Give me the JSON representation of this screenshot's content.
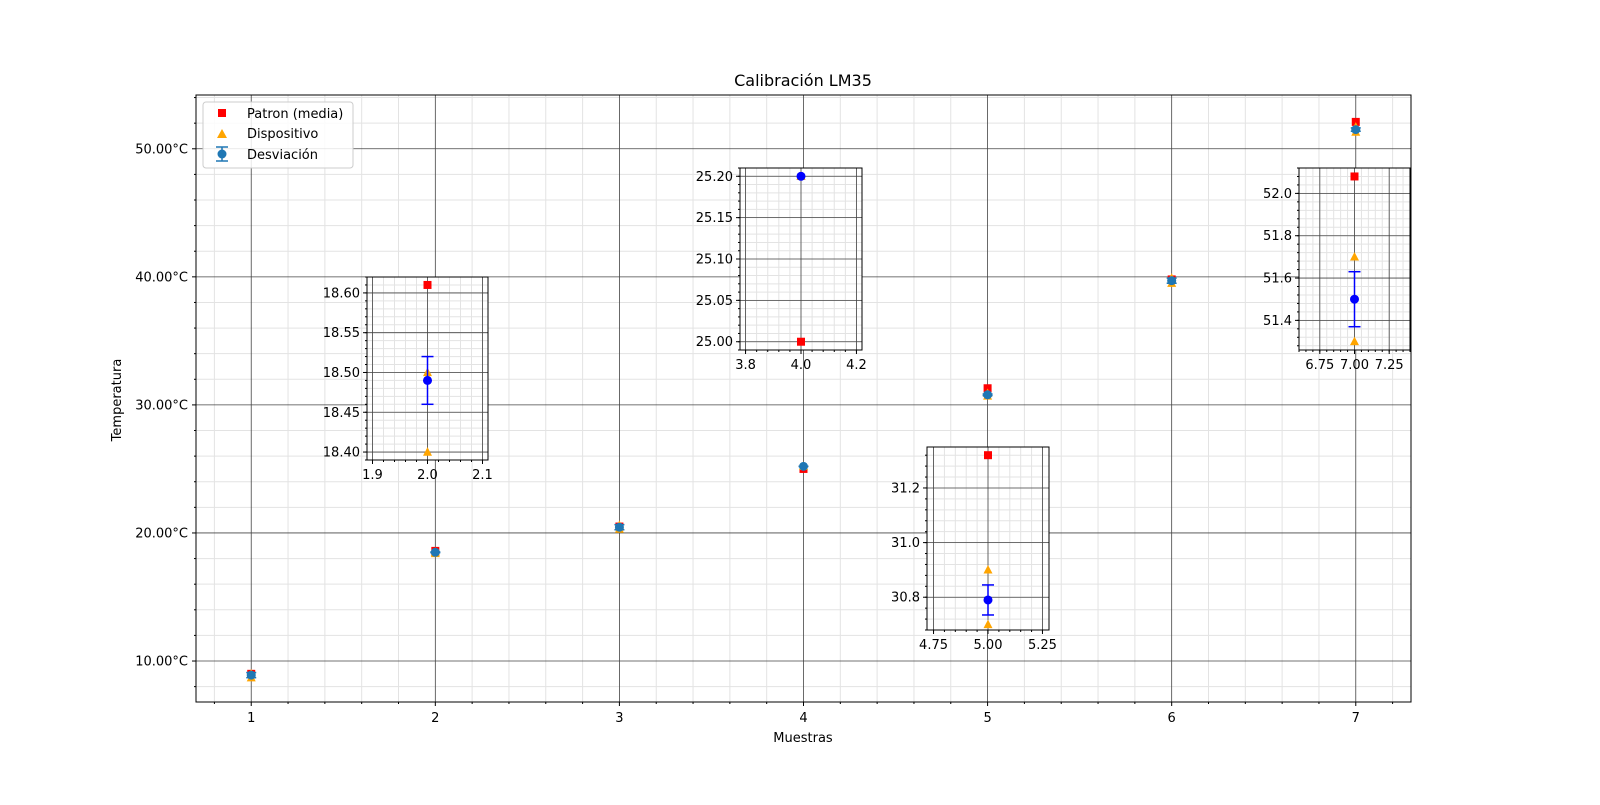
{
  "chart_data": {
    "type": "scatter",
    "title": "Calibración LM35",
    "xlabel": "Muestras",
    "ylabel": "Temperatura",
    "xlim": [
      0.7,
      7.3
    ],
    "ylim": [
      6.8,
      54.2
    ],
    "xticks": [
      1,
      2,
      3,
      4,
      5,
      6,
      7
    ],
    "yticks": [
      10,
      20,
      30,
      40,
      50
    ],
    "ytick_labels": [
      "10.00°C",
      "20.00°C",
      "30.00°C",
      "40.00°C",
      "50.00°C"
    ],
    "grid": true,
    "legend_position": "top-left",
    "legend": [
      "Patron (media)",
      "Dispositivo",
      "Desviación"
    ],
    "colors": {
      "patron": "#ff0000",
      "dispositivo": "#ffa500",
      "desviacion": "#1f77b4",
      "inset_mean": "#0000ff"
    },
    "series": [
      {
        "name": "Patron (media)",
        "marker": "square",
        "x": [
          1,
          2,
          3,
          4,
          5,
          6,
          7
        ],
        "y": [
          9.0,
          18.6,
          20.5,
          25.0,
          31.3,
          39.8,
          52.1
        ]
      },
      {
        "name": "Dispositivo",
        "marker": "triangle",
        "x": [
          1,
          1,
          2,
          2,
          3,
          3,
          4,
          4,
          5,
          5,
          6,
          6,
          7,
          7
        ],
        "y": [
          8.7,
          9.0,
          18.4,
          18.5,
          20.3,
          20.6,
          25.2,
          25.2,
          30.7,
          30.9,
          39.5,
          39.9,
          51.3,
          51.7
        ]
      },
      {
        "name": "Desviación",
        "marker": "circle",
        "x": [
          1,
          2,
          3,
          4,
          5,
          6,
          7
        ],
        "y": [
          8.9,
          18.49,
          20.45,
          25.2,
          30.79,
          39.7,
          51.5
        ],
        "err": [
          0.2,
          0.03,
          0.2,
          0.0,
          0.06,
          0.2,
          0.13
        ]
      }
    ],
    "insets": [
      {
        "id": "inset-2",
        "xlim": [
          1.89,
          2.11
        ],
        "ylim": [
          18.39,
          18.62
        ],
        "xticks": [
          1.9,
          2.0,
          2.1
        ],
        "xtick_labels": [
          "1.9",
          "2.0",
          "2.1"
        ],
        "yticks": [
          18.4,
          18.45,
          18.5,
          18.55,
          18.6
        ],
        "ytick_labels": [
          "18.40",
          "18.45",
          "18.50",
          "18.55",
          "18.60"
        ],
        "x": 2.0,
        "patron": 18.61,
        "dispositivo": [
          18.4,
          18.5
        ],
        "mean": 18.49,
        "err": 0.03
      },
      {
        "id": "inset-4",
        "xlim": [
          3.78,
          4.22
        ],
        "ylim": [
          24.99,
          25.21
        ],
        "xticks": [
          3.8,
          4.0,
          4.2
        ],
        "xtick_labels": [
          "3.8",
          "4.0",
          "4.2"
        ],
        "yticks": [
          25.0,
          25.05,
          25.1,
          25.15,
          25.2
        ],
        "ytick_labels": [
          "25.00",
          "25.05",
          "25.10",
          "25.15",
          "25.20"
        ],
        "x": 4.0,
        "patron": 25.0,
        "dispositivo": [
          25.2,
          25.2
        ],
        "mean": 25.2,
        "err": 0.0
      },
      {
        "id": "inset-5",
        "xlim": [
          4.72,
          5.28
        ],
        "ylim": [
          30.68,
          31.35
        ],
        "xticks": [
          4.75,
          5.0,
          5.25
        ],
        "xtick_labels": [
          "4.75",
          "5.00",
          "5.25"
        ],
        "yticks": [
          30.8,
          31.0,
          31.2
        ],
        "ytick_labels": [
          "30.8",
          "31.0",
          "31.2"
        ],
        "x": 5.0,
        "patron": 31.32,
        "dispositivo": [
          30.7,
          30.9
        ],
        "mean": 30.79,
        "err": 0.055
      },
      {
        "id": "inset-7",
        "xlim": [
          6.6,
          7.4
        ],
        "ylim": [
          51.26,
          52.12
        ],
        "xticks": [
          6.75,
          7.0,
          7.25
        ],
        "xtick_labels": [
          "6.75",
          "7.00",
          "7.25"
        ],
        "yticks": [
          51.4,
          51.6,
          51.8,
          52.0
        ],
        "ytick_labels": [
          "51.4",
          "51.6",
          "51.8",
          "52.0"
        ],
        "x": 7.0,
        "patron": 52.08,
        "dispositivo": [
          51.3,
          51.7
        ],
        "mean": 51.5,
        "err": 0.13
      }
    ]
  }
}
